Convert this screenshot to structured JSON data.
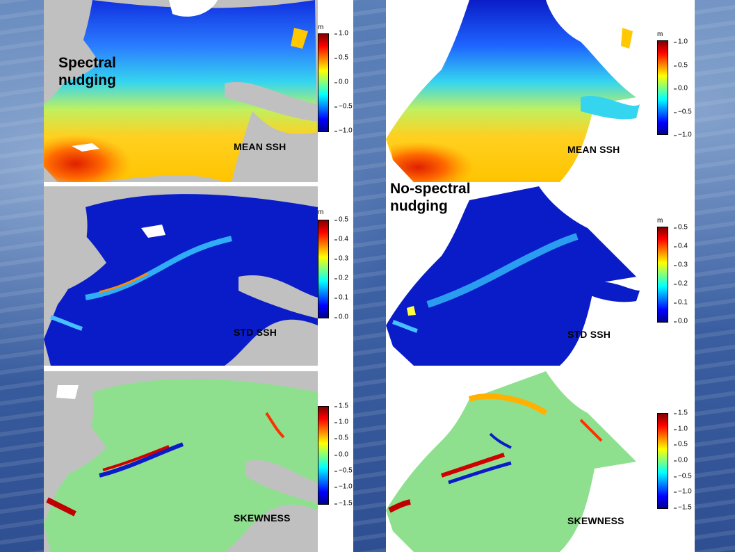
{
  "overlay_titles": {
    "spectral": [
      "Spectral",
      "nudging"
    ],
    "no_spectral": [
      "No-spectral",
      "nudging"
    ]
  },
  "panels": {
    "mean": {
      "label": "MEAN SSH",
      "unit": "m",
      "ticks": [
        "1.0",
        "0.5",
        "0.0",
        "−0.5",
        "−1.0"
      ]
    },
    "std": {
      "label": "STD SSH",
      "unit": "m",
      "ticks": [
        "0.5",
        "0.4",
        "0.3",
        "0.2",
        "0.1",
        "0.0"
      ]
    },
    "skew": {
      "label": "SKEWNESS",
      "unit": "",
      "ticks": [
        "1.5",
        "1.0",
        "0.5",
        "0.0",
        "−0.5",
        "−1.0",
        "−1.5"
      ]
    }
  },
  "colors": {
    "land": "#c0c0c0",
    "coast_white": "#ffffff",
    "jet_scale": [
      "#00008f",
      "#0000ff",
      "#0080ff",
      "#00ffff",
      "#80ff80",
      "#ffff00",
      "#ff8000",
      "#ff0000",
      "#800000"
    ]
  }
}
